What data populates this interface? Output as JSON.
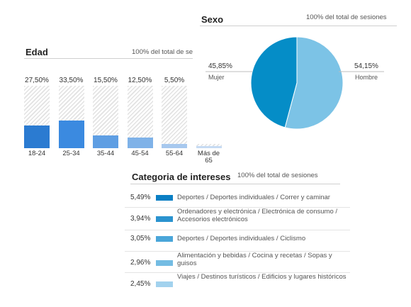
{
  "edad": {
    "title": "Edad",
    "subtitle": "100% del total de se",
    "chart_data": {
      "type": "bar",
      "categories": [
        "18-24",
        "25-34",
        "35-44",
        "45-54",
        "55-64",
        "Más de 65"
      ],
      "values": [
        27.5,
        33.5,
        15.5,
        12.5,
        5.5,
        null
      ],
      "value_labels": [
        "27,50%",
        "33,50%",
        "15,50%",
        "12,50%",
        "5,50%",
        ""
      ],
      "ylim": [
        0,
        100
      ],
      "colors": [
        "#2b7bd1",
        "#3b8ae0",
        "#5e9ee3",
        "#7fb2e8",
        "#a7c8ee",
        "#c6dbf3"
      ]
    }
  },
  "sexo": {
    "title": "Sexo",
    "subtitle": "100% del total de sesiones",
    "chart_data": {
      "type": "pie",
      "labels": [
        "Mujer",
        "Hombre"
      ],
      "values": [
        45.85,
        54.15
      ],
      "value_labels": [
        "45,85%",
        "54,15%"
      ],
      "colors": [
        "#058dc7",
        "#7cc3e6"
      ]
    }
  },
  "intereses": {
    "title": "Categoria de intereses",
    "subtitle": "100% del total de sesiones",
    "chart_data": {
      "type": "bar",
      "orientation": "horizontal",
      "values": [
        5.49,
        3.94,
        3.05,
        2.96,
        2.45
      ],
      "value_labels": [
        "5,49%",
        "3,94%",
        "3,05%",
        "2,96%",
        "2,45%"
      ],
      "categories": [
        "Deportes / Deportes individuales / Correr y caminar",
        "Ordenadores y electrónica / Electrónica de consumo / Accesorios electrónicos",
        "Deportes / Deportes individuales / Ciclismo",
        "Alimentación y bebidas / Cocina y recetas / Sopas y guisos",
        "Viajes / Destinos turísticos / Edificios y lugares históricos"
      ],
      "colors": [
        "#0a7fc4",
        "#2a93cf",
        "#4aa6d9",
        "#74bce3",
        "#a2d2ee"
      ]
    }
  }
}
